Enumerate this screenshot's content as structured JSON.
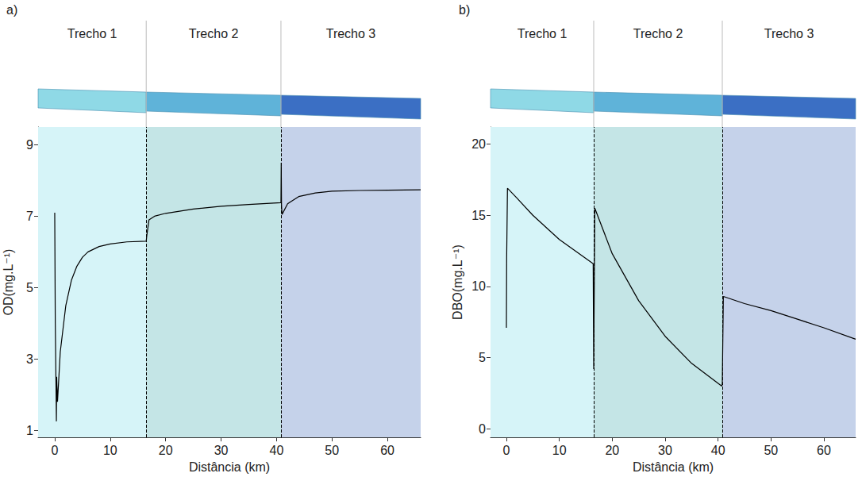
{
  "chart_data": [
    {
      "type": "line",
      "panel_label": "a)",
      "x_label": "Distância (km)",
      "y_label": "OD(mg.L⁻¹)",
      "reaches": [
        {
          "label": "Trecho 1",
          "start": -3,
          "end": 16.5,
          "color": "#d6f4f8"
        },
        {
          "label": "Trecho 2",
          "start": 16.5,
          "end": 40.8,
          "color": "#c4e5e6"
        },
        {
          "label": "Trecho 3",
          "start": 40.8,
          "end": 66,
          "color": "#c5d2ea"
        }
      ],
      "xlim": [
        -3,
        66
      ],
      "xticks": [
        0,
        10,
        20,
        30,
        40,
        50,
        60
      ],
      "ylim": [
        0.8,
        9.5
      ],
      "yticks": [
        1,
        3,
        5,
        7,
        9
      ],
      "grid": false,
      "color": "#000000",
      "x": [
        0,
        0.1,
        0.3,
        0.35,
        0.5,
        1,
        2,
        3,
        4,
        5,
        6,
        8,
        10,
        13,
        16.5,
        16.6,
        17,
        18,
        20,
        25,
        30,
        35,
        40.8,
        40.85,
        40.9,
        41,
        42,
        44,
        47,
        50,
        55,
        60,
        66
      ],
      "values": [
        7.1,
        4.0,
        1.25,
        2.5,
        1.8,
        3.2,
        4.5,
        5.2,
        5.6,
        5.85,
        6.0,
        6.15,
        6.22,
        6.28,
        6.3,
        6.45,
        6.9,
        7.0,
        7.08,
        7.2,
        7.28,
        7.33,
        7.38,
        8.5,
        7.3,
        7.05,
        7.35,
        7.55,
        7.65,
        7.7,
        7.72,
        7.73,
        7.74
      ]
    },
    {
      "type": "line",
      "panel_label": "b)",
      "x_label": "Distância (km)",
      "y_label": "DBO(mg.L⁻¹)",
      "reaches": [
        {
          "label": "Trecho 1",
          "start": -3,
          "end": 16.5,
          "color": "#d6f4f8"
        },
        {
          "label": "Trecho 2",
          "start": 16.5,
          "end": 40.8,
          "color": "#c4e5e6"
        },
        {
          "label": "Trecho 3",
          "start": 40.8,
          "end": 66,
          "color": "#c5d2ea"
        }
      ],
      "xlim": [
        -3,
        66
      ],
      "xticks": [
        0,
        10,
        20,
        30,
        40,
        50,
        60
      ],
      "ylim": [
        -0.6,
        21.2
      ],
      "yticks": [
        0,
        5,
        10,
        15,
        20
      ],
      "grid": false,
      "color": "#000000",
      "x": [
        0,
        0.05,
        0.2,
        2,
        5,
        10,
        16.4,
        16.5,
        16.7,
        20,
        25,
        30,
        35,
        40.7,
        40.8,
        41,
        45,
        50,
        55,
        60,
        66
      ],
      "values": [
        7.1,
        12,
        16.9,
        16.2,
        15.0,
        13.3,
        11.6,
        4.2,
        15.5,
        12.3,
        9.0,
        6.5,
        4.6,
        3.0,
        3.2,
        9.3,
        8.8,
        8.3,
        7.7,
        7.1,
        6.3
      ]
    }
  ]
}
